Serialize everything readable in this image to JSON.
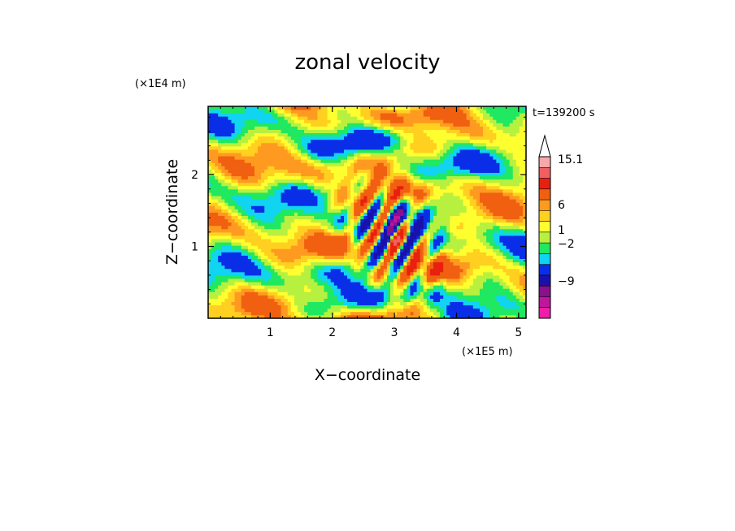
{
  "chart_data": {
    "type": "heatmap",
    "title": "zonal velocity",
    "xlabel": "X−coordinate",
    "ylabel": "Z−coordinate",
    "x_scale_label": "(×1E5 m)",
    "y_scale_label": "(×1E4 m)",
    "time_label": "t=139200 s",
    "xlim": [
      0,
      5.12
    ],
    "ylim": [
      0,
      2.95
    ],
    "x_ticks": [
      1,
      2,
      3,
      4,
      5
    ],
    "x_tick_labels": [
      "1",
      "2",
      "3",
      "4",
      "5"
    ],
    "y_ticks": [
      1,
      2
    ],
    "y_tick_labels": [
      "1",
      "2"
    ],
    "colorbar": {
      "colors": [
        "#ee1ea8",
        "#c0169c",
        "#8a108e",
        "#1a10aa",
        "#0a2ee8",
        "#10d4f0",
        "#20e860",
        "#b8f040",
        "#ffff30",
        "#ffd020",
        "#ff9a20",
        "#f06010",
        "#e82010",
        "#f06060",
        "#f8a8a8"
      ],
      "tick_labels": [
        "15.1",
        "6",
        "1",
        "−2",
        "−9"
      ],
      "tick_levels": [
        15.1,
        6,
        1,
        -2,
        -9
      ]
    },
    "field_levels": [
      -15,
      -12,
      -9,
      -6,
      -3,
      -2,
      -1,
      0,
      1,
      2,
      3,
      6,
      9,
      12,
      15.1
    ]
  }
}
